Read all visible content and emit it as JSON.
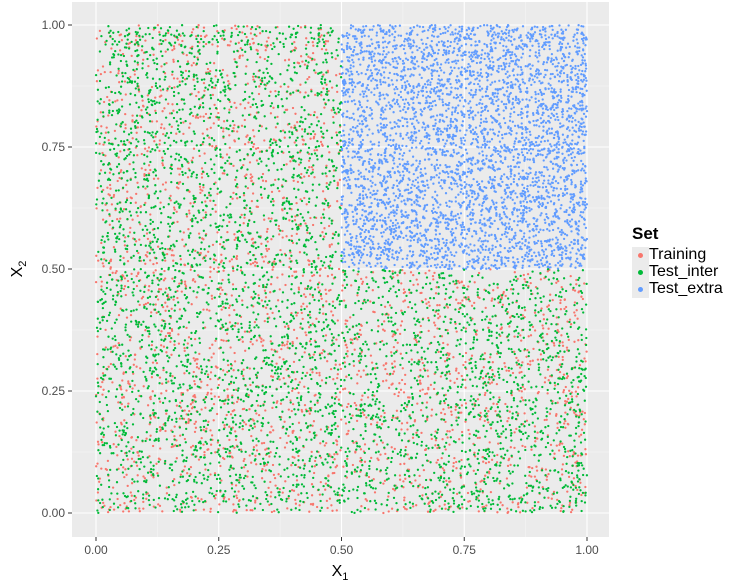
{
  "chart_data": {
    "type": "scatter",
    "title": "",
    "xlabel": {
      "main": "X",
      "subscript": "1"
    },
    "ylabel": {
      "main": "X",
      "subscript": "2"
    },
    "xlim": [
      0,
      1
    ],
    "ylim": [
      0,
      1
    ],
    "x_ticks": [
      0.0,
      0.25,
      0.5,
      0.75,
      1.0
    ],
    "y_ticks": [
      0.0,
      0.25,
      0.5,
      0.75,
      1.0
    ],
    "x_tick_labels": [
      "0.00",
      "0.25",
      "0.50",
      "0.75",
      "1.00"
    ],
    "y_tick_labels": [
      "0.00",
      "0.25",
      "0.50",
      "0.75",
      "1.00"
    ],
    "grid": true,
    "panel_background": "#ebebeb",
    "legend": {
      "title": "Set",
      "placement": "right",
      "entries": [
        "Training",
        "Test_inter",
        "Test_extra"
      ]
    },
    "series": [
      {
        "name": "Training",
        "color": "#f8766d",
        "region": "uniform on [0,1]x[0,1] excluding [0.5,1]x[0.5,1]",
        "x_range": [
          0,
          1
        ],
        "y_range": [
          0,
          1
        ],
        "excluded_region": {
          "x": [
            0.5,
            1
          ],
          "y": [
            0.5,
            1
          ]
        }
      },
      {
        "name": "Test_inter",
        "color": "#00ba38",
        "region": "uniform on [0,1]x[0,1] excluding [0.5,1]x[0.5,1]",
        "x_range": [
          0,
          1
        ],
        "y_range": [
          0,
          1
        ],
        "excluded_region": {
          "x": [
            0.5,
            1
          ],
          "y": [
            0.5,
            1
          ]
        }
      },
      {
        "name": "Test_extra",
        "color": "#619cff",
        "region": "uniform on [0.5,1]x[0.5,1]",
        "x_range": [
          0.5,
          1
        ],
        "y_range": [
          0.5,
          1
        ]
      }
    ]
  }
}
